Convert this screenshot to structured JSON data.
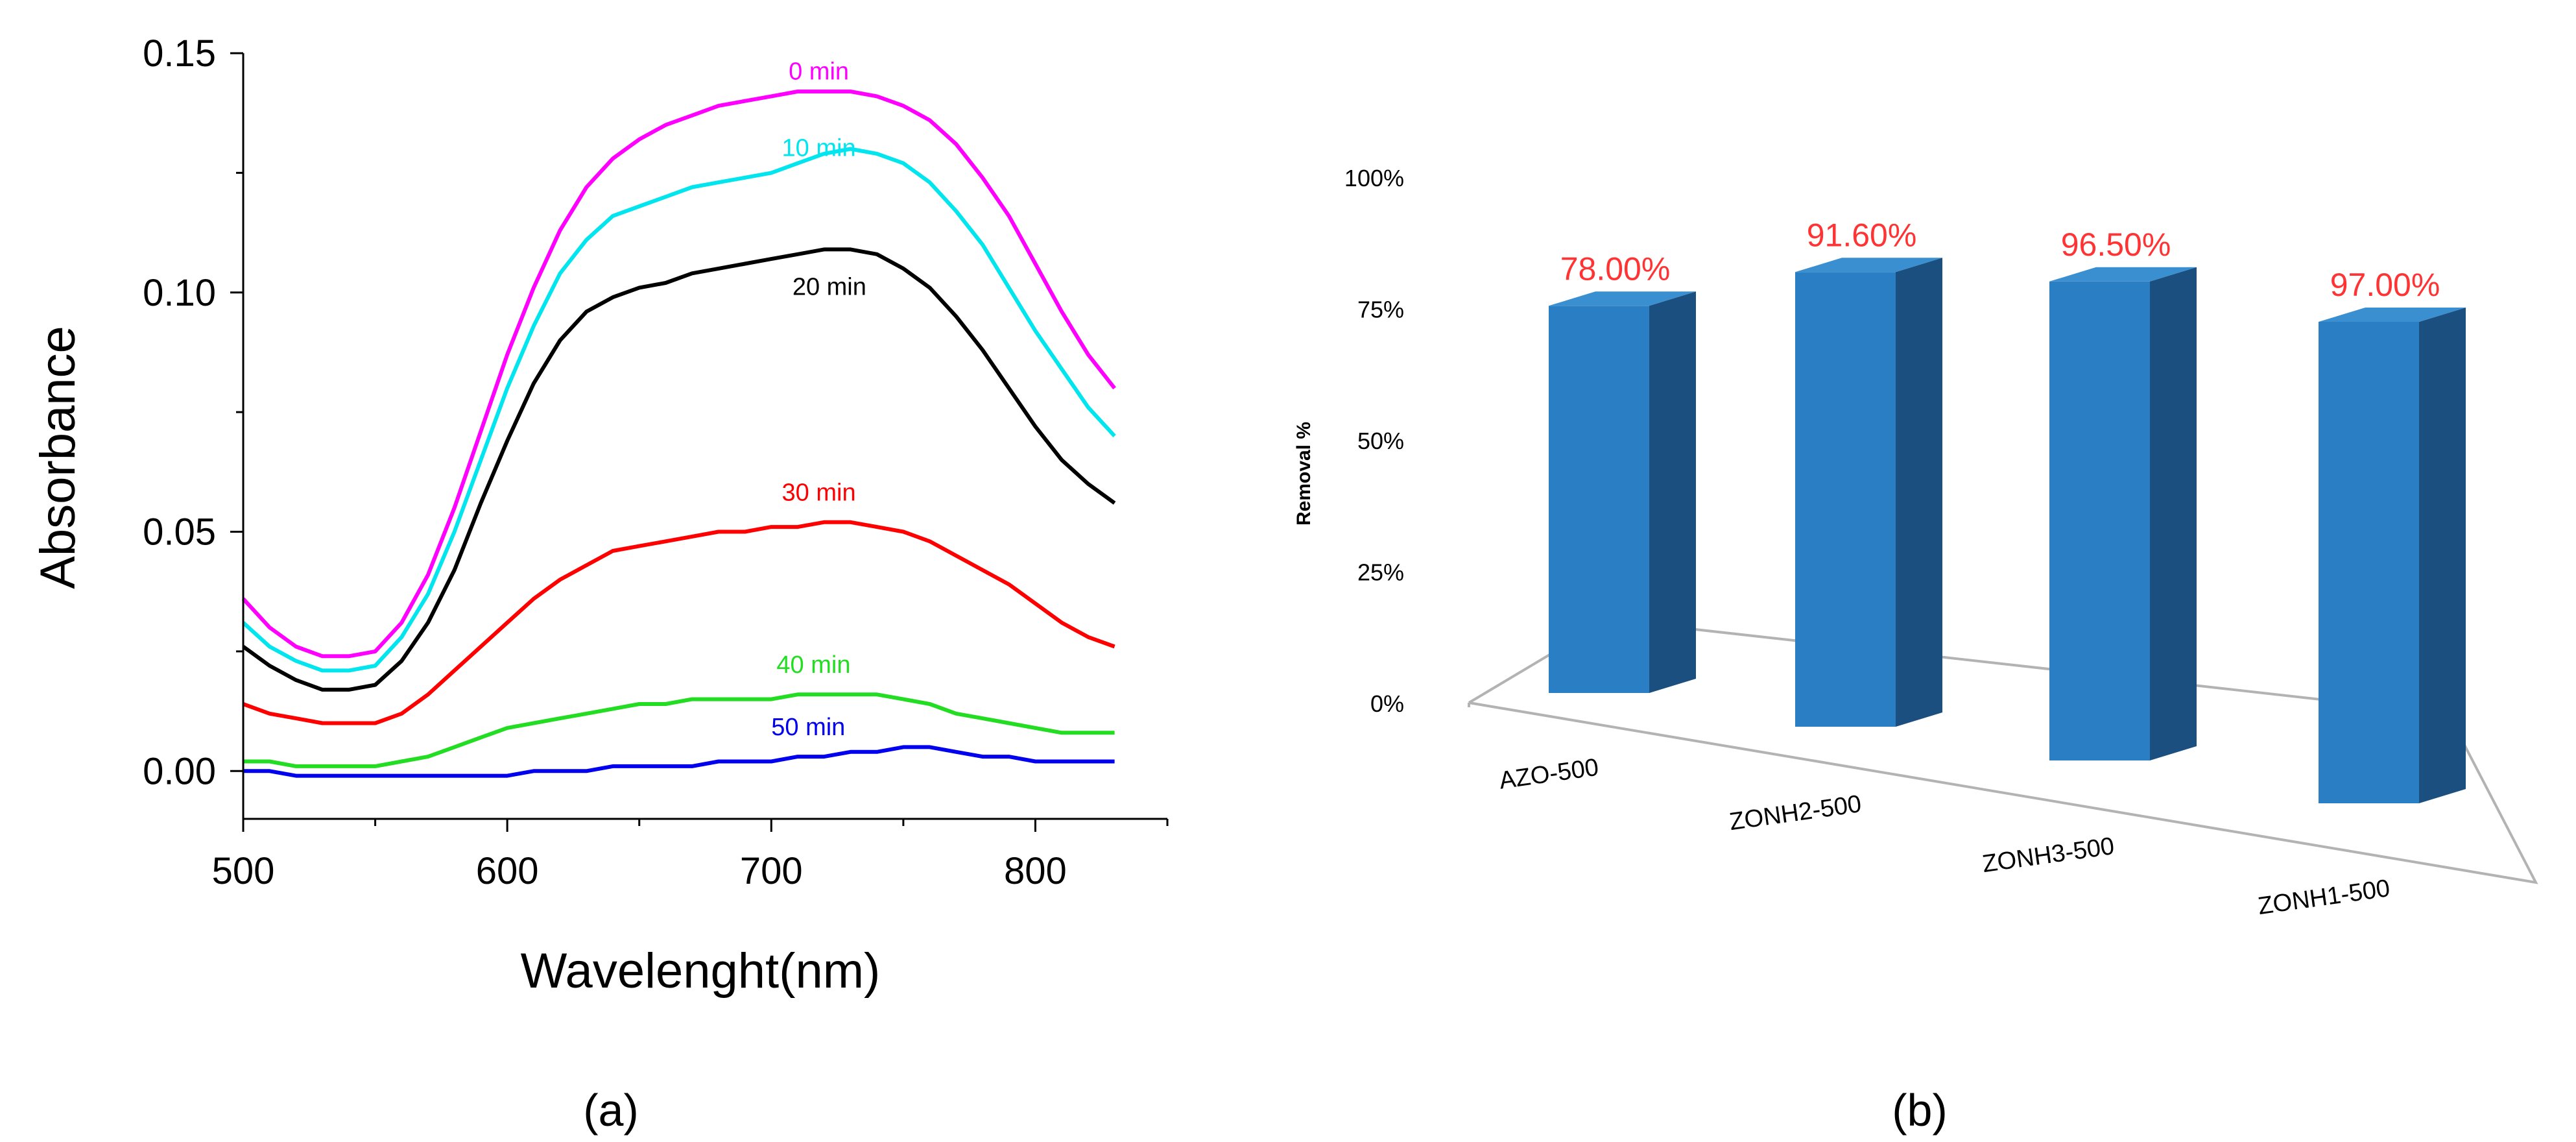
{
  "chart_data": [
    {
      "type": "line",
      "panel_label": "(a)",
      "xlabel": "Wavelenght(nm)",
      "ylabel": "Absorbance",
      "xlim": [
        500,
        850
      ],
      "ylim": [
        -0.01,
        0.15
      ],
      "x_ticks": [
        "500",
        "600",
        "700",
        "800"
      ],
      "y_ticks": [
        "0.00",
        "0.05",
        "0.10",
        "0.15"
      ],
      "x": [
        500,
        510,
        520,
        530,
        540,
        550,
        560,
        570,
        580,
        590,
        600,
        610,
        620,
        630,
        640,
        650,
        660,
        670,
        680,
        690,
        700,
        710,
        720,
        730,
        740,
        750,
        760,
        770,
        780,
        790,
        800,
        810,
        820,
        830
      ],
      "series": [
        {
          "name": "0 min",
          "color": "#ff00ff",
          "label_x": 718,
          "label_y": 0.1445,
          "values": [
            0.036,
            0.03,
            0.026,
            0.024,
            0.024,
            0.025,
            0.031,
            0.041,
            0.055,
            0.071,
            0.087,
            0.101,
            0.113,
            0.122,
            0.128,
            0.132,
            0.135,
            0.137,
            0.139,
            0.14,
            0.141,
            0.142,
            0.142,
            0.142,
            0.141,
            0.139,
            0.136,
            0.131,
            0.124,
            0.116,
            0.106,
            0.096,
            0.087,
            0.08
          ]
        },
        {
          "name": "10 min",
          "color": "#00e5ee",
          "label_x": 718,
          "label_y": 0.1285,
          "values": [
            0.031,
            0.026,
            0.023,
            0.021,
            0.021,
            0.022,
            0.028,
            0.037,
            0.05,
            0.065,
            0.08,
            0.093,
            0.104,
            0.111,
            0.116,
            0.118,
            0.12,
            0.122,
            0.123,
            0.124,
            0.125,
            0.127,
            0.129,
            0.13,
            0.129,
            0.127,
            0.123,
            0.117,
            0.11,
            0.101,
            0.092,
            0.084,
            0.076,
            0.07
          ]
        },
        {
          "name": "20 min",
          "color": "#000000",
          "label_x": 722,
          "label_y": 0.0995,
          "values": [
            0.026,
            0.022,
            0.019,
            0.017,
            0.017,
            0.018,
            0.023,
            0.031,
            0.042,
            0.056,
            0.069,
            0.081,
            0.09,
            0.096,
            0.099,
            0.101,
            0.102,
            0.104,
            0.105,
            0.106,
            0.107,
            0.108,
            0.109,
            0.109,
            0.108,
            0.105,
            0.101,
            0.095,
            0.088,
            0.08,
            0.072,
            0.065,
            0.06,
            0.056
          ]
        },
        {
          "name": "30 min",
          "color": "#ff0000",
          "label_x": 718,
          "label_y": 0.0565,
          "values": [
            0.014,
            0.012,
            0.011,
            0.01,
            0.01,
            0.01,
            0.012,
            0.016,
            0.021,
            0.026,
            0.031,
            0.036,
            0.04,
            0.043,
            0.046,
            0.047,
            0.048,
            0.049,
            0.05,
            0.05,
            0.051,
            0.051,
            0.052,
            0.052,
            0.051,
            0.05,
            0.048,
            0.045,
            0.042,
            0.039,
            0.035,
            0.031,
            0.028,
            0.026
          ]
        },
        {
          "name": "40 min",
          "color": "#22dd22",
          "label_x": 716,
          "label_y": 0.0205,
          "values": [
            0.002,
            0.002,
            0.001,
            0.001,
            0.001,
            0.001,
            0.002,
            0.003,
            0.005,
            0.007,
            0.009,
            0.01,
            0.011,
            0.012,
            0.013,
            0.014,
            0.014,
            0.015,
            0.015,
            0.015,
            0.015,
            0.016,
            0.016,
            0.016,
            0.016,
            0.015,
            0.014,
            0.012,
            0.011,
            0.01,
            0.009,
            0.008,
            0.008,
            0.008
          ]
        },
        {
          "name": "50 min",
          "color": "#0000ee",
          "label_x": 714,
          "label_y": 0.0075,
          "values": [
            0.0,
            0.0,
            -0.001,
            -0.001,
            -0.001,
            -0.001,
            -0.001,
            -0.001,
            -0.001,
            -0.001,
            -0.001,
            0.0,
            0.0,
            0.0,
            0.001,
            0.001,
            0.001,
            0.001,
            0.002,
            0.002,
            0.002,
            0.003,
            0.003,
            0.004,
            0.004,
            0.005,
            0.005,
            0.004,
            0.003,
            0.003,
            0.002,
            0.002,
            0.002,
            0.002
          ]
        }
      ]
    },
    {
      "type": "bar",
      "panel_label": "(b)",
      "ylabel": "Removal %",
      "ylim": [
        0,
        100
      ],
      "y_ticks": [
        "0%",
        "25%",
        "50%",
        "75%",
        "100%"
      ],
      "categories": [
        "AZO-500",
        "ZONH2-500",
        "ZONH3-500",
        "ZONH1-500"
      ],
      "values": [
        78.0,
        91.6,
        96.5,
        97.0
      ],
      "data_labels": [
        "78.00%",
        "91.60%",
        "96.50%",
        "97.00%"
      ],
      "bar_color": "#2a7fc4",
      "label_color": "#ff3333"
    }
  ]
}
